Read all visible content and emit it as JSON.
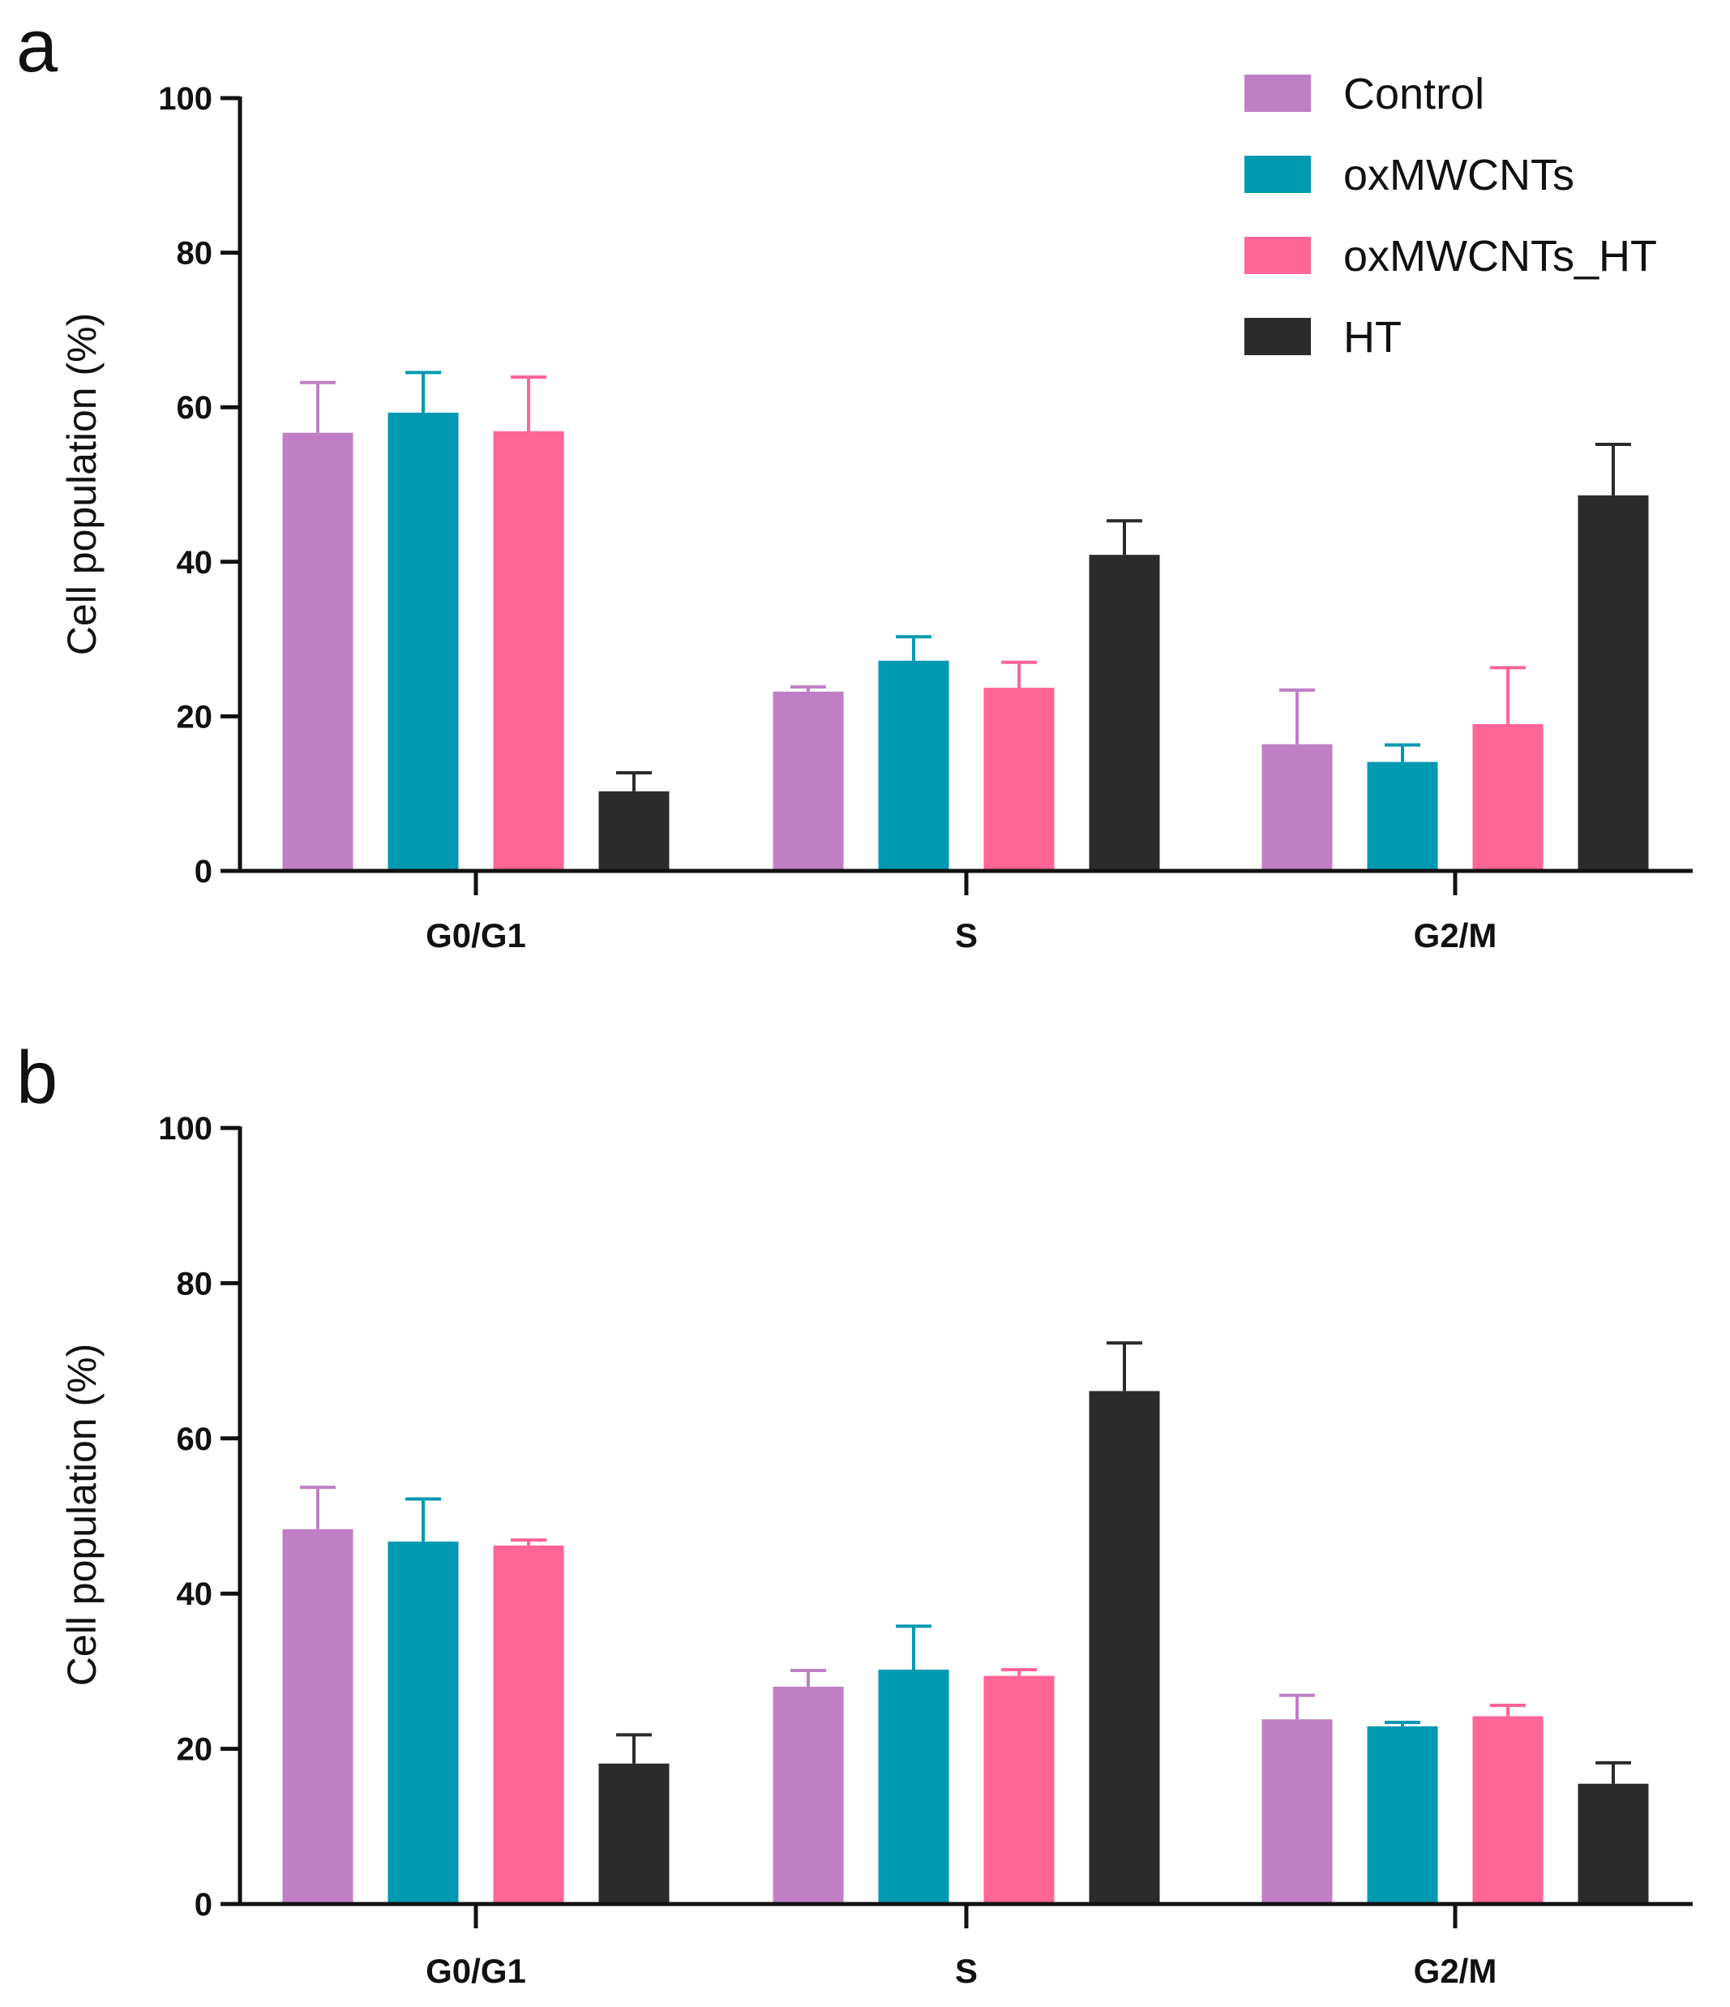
{
  "chart_data": [
    {
      "panel": "a",
      "type": "bar",
      "categories": [
        "G0/G1",
        "S",
        "G2/M"
      ],
      "ylabel": "Cell population (%)",
      "xlabel": "",
      "ylim": [
        0,
        100
      ],
      "yticks": [
        "0",
        "20",
        "40",
        "60",
        "80",
        "100"
      ],
      "legend": "top-right",
      "series": [
        {
          "name": "Control",
          "color": "#c07fc4",
          "values": [
            56.7,
            23.2,
            16.4
          ],
          "errors": [
            6.5,
            0.6,
            7.0
          ]
        },
        {
          "name": "oxMWCNTs",
          "color": "#0099b1",
          "values": [
            59.3,
            27.2,
            14.1
          ],
          "errors": [
            5.2,
            3.1,
            2.2
          ]
        },
        {
          "name": "oxMWCNTs_HT",
          "color": "#ff6595",
          "values": [
            56.9,
            23.7,
            19.0
          ],
          "errors": [
            7.0,
            3.3,
            7.3
          ]
        },
        {
          "name": "HT",
          "color": "#2b2b2b",
          "values": [
            10.3,
            40.9,
            48.6
          ],
          "errors": [
            2.4,
            4.4,
            6.6
          ]
        }
      ]
    },
    {
      "panel": "b",
      "type": "bar",
      "categories": [
        "G0/G1",
        "S",
        "G2/M"
      ],
      "ylabel": "Cell population (%)",
      "xlabel": "",
      "ylim": [
        0,
        100
      ],
      "yticks": [
        "0",
        "20",
        "40",
        "60",
        "80",
        "100"
      ],
      "legend": "none",
      "series": [
        {
          "name": "Control",
          "color": "#c07fc4",
          "values": [
            48.3,
            28.0,
            23.8
          ],
          "errors": [
            5.4,
            2.1,
            3.1
          ]
        },
        {
          "name": "oxMWCNTs",
          "color": "#0099b1",
          "values": [
            46.7,
            30.2,
            22.9
          ],
          "errors": [
            5.5,
            5.6,
            0.5
          ]
        },
        {
          "name": "oxMWCNTs_HT",
          "color": "#ff6595",
          "values": [
            46.2,
            29.4,
            24.2
          ],
          "errors": [
            0.7,
            0.8,
            1.4
          ]
        },
        {
          "name": "HT",
          "color": "#2b2b2b",
          "values": [
            18.1,
            66.1,
            15.5
          ],
          "errors": [
            3.7,
            6.2,
            2.7
          ]
        }
      ]
    }
  ]
}
